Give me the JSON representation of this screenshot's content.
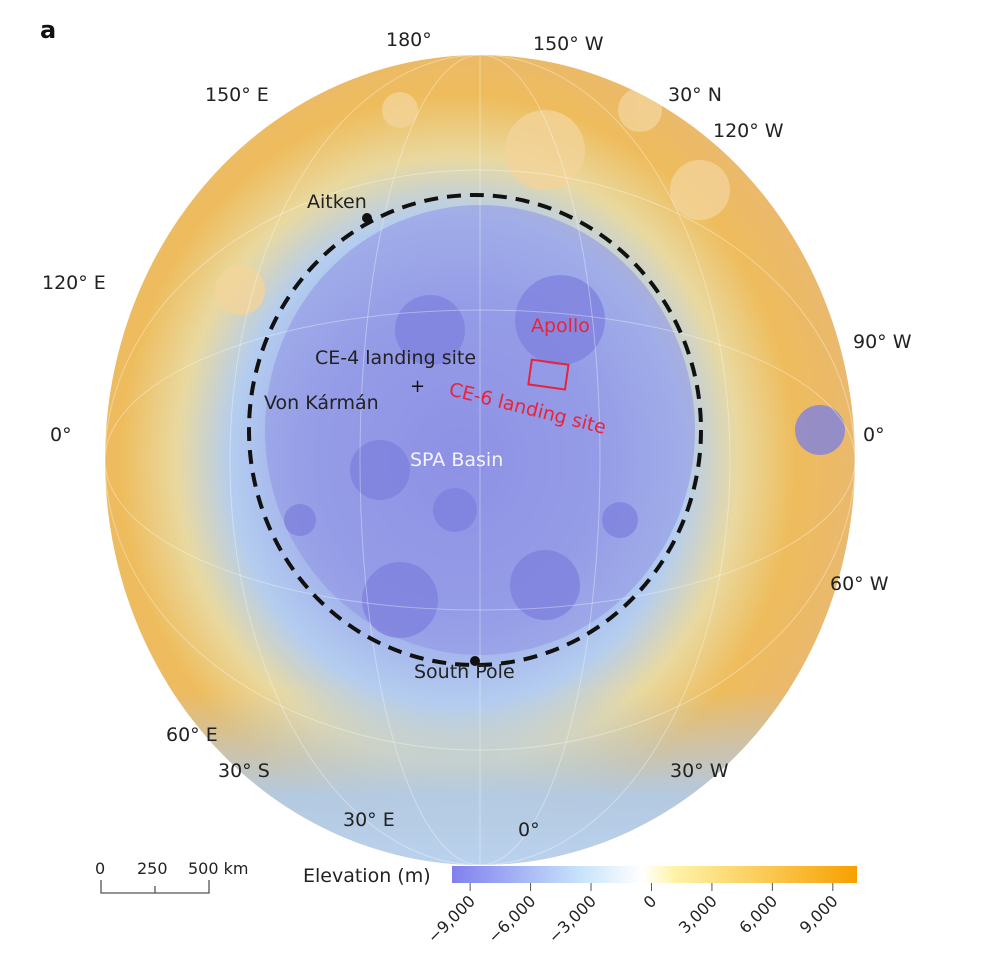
{
  "panel_label": "a",
  "graticule_labels": {
    "top_180": "180°",
    "top_150w": "150° W",
    "top_150e": "150° E",
    "top_30n": "30° N",
    "top_120w": "120° W",
    "left_120e": "120° E",
    "right_90w": "90° W",
    "left_0": "0°",
    "right_0": "0°",
    "right_60w": "60° W",
    "left_60e": "60° E",
    "bottom_30s": "30° S",
    "bottom_30w": "30° W",
    "bottom_30e": "30° E",
    "bottom_0": "0°"
  },
  "features": {
    "aitken": "Aitken",
    "apollo": "Apollo",
    "ce4": "CE-4 landing site",
    "von_karman": "Von Kármán",
    "ce6": "CE-6 landing site",
    "spa": "SPA Basin",
    "south_pole": "South Pole"
  },
  "scale_bar": {
    "ticks": [
      "0",
      "250",
      "500 km"
    ]
  },
  "colorbar": {
    "title": "Elevation (m)",
    "ticks": [
      "−9,000",
      "−6,000",
      "−3,000",
      "0",
      "3,000",
      "6,000",
      "9,000"
    ],
    "tick_values": [
      -9000,
      -6000,
      -3000,
      0,
      3000,
      6000,
      9000
    ],
    "range": [
      -9900,
      10200
    ],
    "colors": [
      "#8080ee",
      "#c8e4fa",
      "#ffffff",
      "#fff3a8",
      "#f7a000"
    ]
  },
  "colors": {
    "low": "#8080ee",
    "mid_low": "#a8c6ee",
    "high": "#f0a830",
    "annotation": "#e8233a"
  }
}
